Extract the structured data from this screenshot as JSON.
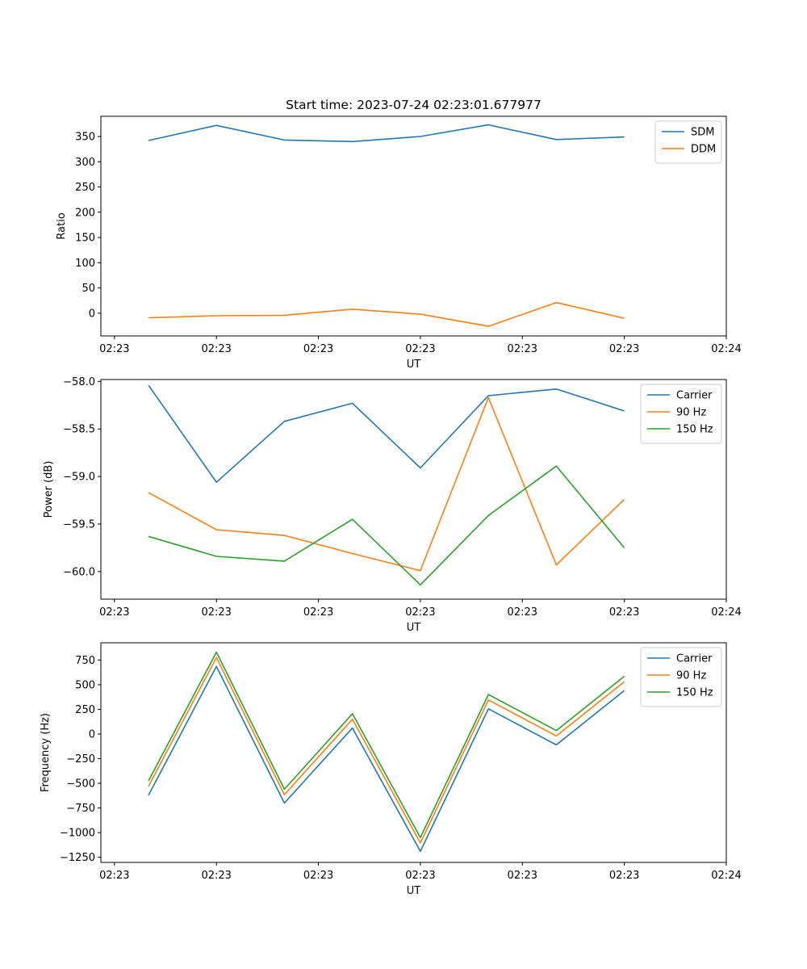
{
  "chart_data": [
    {
      "type": "line",
      "title": "Start time: 2023-07-24 02:23:01.677977",
      "xlabel": "UT",
      "ylabel": "Ratio",
      "x": [
        1,
        2,
        3,
        4,
        5,
        6,
        7,
        8
      ],
      "xlim": [
        0.3,
        9.5
      ],
      "xticks": [
        0.5,
        2,
        3.5,
        5,
        6.5,
        8,
        9.5
      ],
      "xtick_labels": [
        "02:23",
        "02:23",
        "02:23",
        "02:23",
        "02:23",
        "02:23",
        "02:24"
      ],
      "ylim": [
        -45,
        390
      ],
      "yticks": [
        0,
        50,
        100,
        150,
        200,
        250,
        300,
        350
      ],
      "legend": "top-right",
      "series": [
        {
          "name": "SDM",
          "color": "#1f77b4",
          "values": [
            342,
            372,
            343,
            340,
            350,
            373,
            344,
            349
          ]
        },
        {
          "name": "DDM",
          "color": "#ff7f0e",
          "values": [
            -9,
            -5,
            -4,
            8,
            -2,
            -26,
            21,
            -10
          ]
        }
      ]
    },
    {
      "type": "line",
      "title": "",
      "xlabel": "UT",
      "ylabel": "Power (dB)",
      "x": [
        1,
        2,
        3,
        4,
        5,
        6,
        7,
        8
      ],
      "xlim": [
        0.3,
        9.5
      ],
      "xticks": [
        0.5,
        2,
        3.5,
        5,
        6.5,
        8,
        9.5
      ],
      "xtick_labels": [
        "02:23",
        "02:23",
        "02:23",
        "02:23",
        "02:23",
        "02:23",
        "02:24"
      ],
      "ylim": [
        -60.29,
        -57.98
      ],
      "yticks": [
        -60.0,
        -59.5,
        -59.0,
        -58.5,
        -58.0
      ],
      "ytick_labels": [
        "−60.0",
        "−59.5",
        "−59.0",
        "−58.5",
        "−58.0"
      ],
      "legend": "top-right",
      "series": [
        {
          "name": "Carrier",
          "color": "#1f77b4",
          "values": [
            -58.04,
            -59.06,
            -58.42,
            -58.23,
            -58.91,
            -58.15,
            -58.08,
            -58.31
          ]
        },
        {
          "name": "90 Hz",
          "color": "#ff7f0e",
          "values": [
            -59.17,
            -59.56,
            -59.62,
            -59.81,
            -59.99,
            -58.17,
            -59.93,
            -59.24
          ]
        },
        {
          "name": "150 Hz",
          "color": "#2ca02c",
          "values": [
            -59.63,
            -59.84,
            -59.89,
            -59.45,
            -60.14,
            -59.41,
            -58.89,
            -59.75
          ]
        }
      ]
    },
    {
      "type": "line",
      "title": "",
      "xlabel": "UT",
      "ylabel": "Frequency (Hz)",
      "x": [
        1,
        2,
        3,
        4,
        5,
        6,
        7,
        8
      ],
      "xlim": [
        0.3,
        9.5
      ],
      "xticks": [
        0.5,
        2,
        3.5,
        5,
        6.5,
        8,
        9.5
      ],
      "xtick_labels": [
        "02:23",
        "02:23",
        "02:23",
        "02:23",
        "02:23",
        "02:23",
        "02:24"
      ],
      "ylim": [
        -1302,
        925
      ],
      "yticks": [
        -1250,
        -1000,
        -750,
        -500,
        -250,
        0,
        250,
        500,
        750
      ],
      "ytick_labels": [
        "−1250",
        "−1000",
        "−750",
        "−500",
        "−250",
        "0",
        "250",
        "500",
        "750"
      ],
      "legend": "top-right",
      "series": [
        {
          "name": "Carrier",
          "color": "#1f77b4",
          "values": [
            -620,
            685,
            -700,
            60,
            -1190,
            255,
            -110,
            440
          ]
        },
        {
          "name": "90 Hz",
          "color": "#ff7f0e",
          "values": [
            -530,
            775,
            -615,
            150,
            -1105,
            345,
            -20,
            530
          ]
        },
        {
          "name": "150 Hz",
          "color": "#2ca02c",
          "values": [
            -475,
            830,
            -560,
            205,
            -1050,
            400,
            35,
            585
          ]
        }
      ]
    }
  ]
}
